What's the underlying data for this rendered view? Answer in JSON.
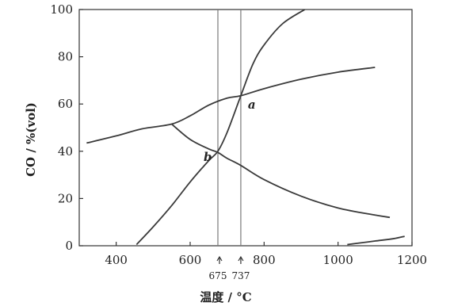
{
  "chart_data": {
    "type": "line",
    "xlabel": "温度 / °C",
    "ylabel": "CO / %(vol)",
    "xlim": [
      300,
      1200
    ],
    "ylim": [
      0,
      100
    ],
    "x_ticks": [
      400,
      600,
      800,
      1000,
      1200
    ],
    "x_tick_labels": [
      "400",
      "600",
      "800",
      "1000",
      "1200"
    ],
    "y_ticks": [
      0,
      20,
      40,
      60,
      80,
      100
    ],
    "y_tick_labels": [
      "0",
      "20",
      "40",
      "60",
      "80",
      "100"
    ],
    "grid": false,
    "series": [
      {
        "x": [
          320,
          400,
          470,
          550,
          600,
          650,
          700,
          737,
          800,
          900,
          1000,
          1100
        ],
        "y": [
          43.5,
          46.5,
          49.5,
          51.5,
          55,
          59.5,
          62.5,
          63.5,
          66.5,
          70.5,
          73.5,
          75.5
        ]
      },
      {
        "x": [
          550,
          600,
          650,
          675,
          700,
          737,
          800,
          900,
          1000,
          1100,
          1140
        ],
        "y": [
          51.5,
          45,
          41,
          39.5,
          37,
          34,
          28,
          21,
          16,
          13,
          12
        ]
      },
      {
        "x": [
          455,
          500,
          550,
          600,
          650,
          675,
          700,
          737,
          770,
          800,
          850,
          910
        ],
        "y": [
          0.5,
          8,
          17,
          27,
          36,
          40,
          48,
          63.5,
          77,
          85,
          94,
          100
        ]
      },
      {
        "x": [
          1025,
          1050,
          1100,
          1150,
          1180
        ],
        "y": [
          0.5,
          1,
          2,
          3,
          4
        ]
      }
    ],
    "vertical_lines": [
      {
        "x": 675,
        "label": "675"
      },
      {
        "x": 737,
        "label": "737"
      }
    ],
    "annotations": [
      {
        "text": "a",
        "x": 737,
        "y": 63.5
      },
      {
        "text": "b",
        "x": 675,
        "y": 40
      }
    ],
    "colors": {
      "curve": "#3a3a3a",
      "guide": "#7a7a7a"
    }
  }
}
